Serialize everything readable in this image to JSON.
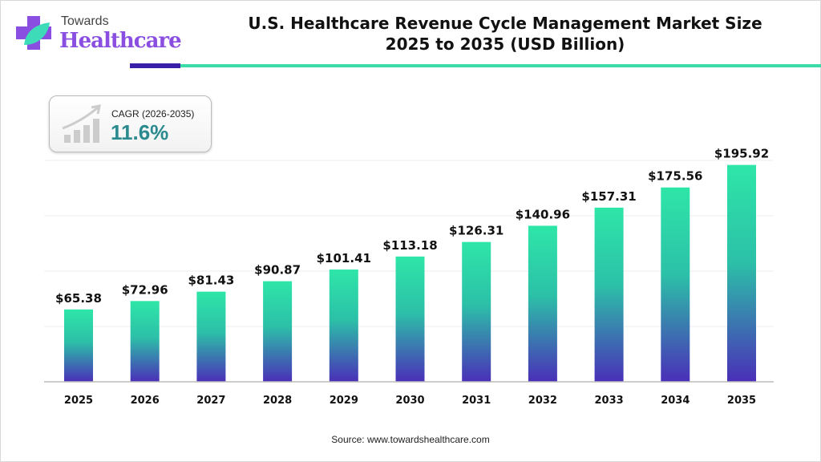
{
  "brand": {
    "line1": "Towards",
    "line2": "Healthcare"
  },
  "colors": {
    "bar_top": "#2ee6a8",
    "bar_bottom": "#4a2fb8",
    "accent_dark": "#3a1fa8",
    "accent_teal": "#3ddba8",
    "cagr_value": "#2b8a8e"
  },
  "cagr": {
    "label": "CAGR (2026-2035)",
    "value": "11.6%",
    "icon": "growth-chart-icon"
  },
  "source": "Source: www.towardshealthcare.com",
  "chart_data": {
    "type": "bar",
    "title": "U.S. Healthcare Revenue Cycle Management Market Size 2025 to 2035 (USD Billion)",
    "title_lines": [
      "U.S. Healthcare Revenue Cycle Management Market Size",
      "2025 to 2035 (USD Billion)"
    ],
    "categories": [
      "2025",
      "2026",
      "2027",
      "2028",
      "2029",
      "2030",
      "2031",
      "2032",
      "2033",
      "2034",
      "2035"
    ],
    "values": [
      65.38,
      72.96,
      81.43,
      90.87,
      101.41,
      113.18,
      126.31,
      140.96,
      157.31,
      175.56,
      195.92
    ],
    "labels": [
      "$65.38",
      "$72.96",
      "$81.43",
      "$90.87",
      "$101.41",
      "$113.18",
      "$126.31",
      "$140.96",
      "$157.31",
      "$175.56",
      "$195.92"
    ],
    "xlabel": "",
    "ylabel": "",
    "ylim": [
      0,
      200
    ],
    "grid": true,
    "gridlines": [
      50,
      100,
      150,
      200
    ]
  }
}
